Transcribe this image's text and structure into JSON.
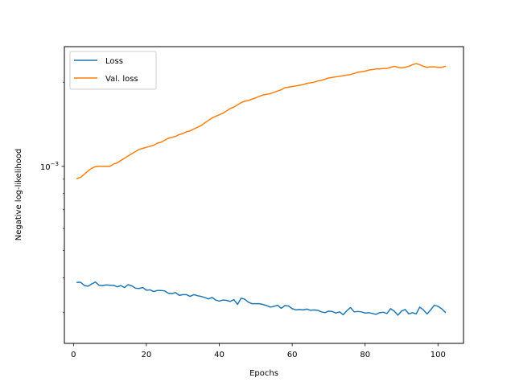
{
  "chart_data": {
    "type": "line",
    "xlabel": "Epochs",
    "ylabel": "Negative log-likelihood",
    "xlim": [
      -2.5,
      107
    ],
    "ylim": [
      0.000233,
      0.00268
    ],
    "yscale": "log",
    "x_ticks": [
      {
        "value": 0,
        "label": "0"
      },
      {
        "value": 20,
        "label": "20"
      },
      {
        "value": 40,
        "label": "40"
      },
      {
        "value": 60,
        "label": "60"
      },
      {
        "value": 80,
        "label": "80"
      },
      {
        "value": 100,
        "label": "100"
      }
    ],
    "y_ticks": [
      {
        "value": 0.001,
        "base": "10",
        "exponent": "−3"
      }
    ],
    "legend_position": "top-left",
    "grid": false,
    "series": [
      {
        "name": "Loss",
        "color": "#1f77b4",
        "x": [
          1,
          2,
          3,
          4,
          5,
          6,
          7,
          8,
          9,
          10,
          11,
          12,
          13,
          14,
          15,
          16,
          17,
          18,
          19,
          20,
          21,
          22,
          23,
          24,
          25,
          26,
          27,
          28,
          29,
          30,
          31,
          32,
          33,
          34,
          35,
          36,
          37,
          38,
          39,
          40,
          41,
          42,
          43,
          44,
          45,
          46,
          47,
          48,
          49,
          50,
          51,
          52,
          53,
          54,
          55,
          56,
          57,
          58,
          59,
          60,
          61,
          62,
          63,
          64,
          65,
          66,
          67,
          68,
          69,
          70,
          71,
          72,
          73,
          74,
          75,
          76,
          77,
          78,
          79,
          80,
          81,
          82,
          83,
          84,
          85,
          86,
          87,
          88,
          89,
          90,
          91,
          92,
          93,
          94,
          95,
          96,
          97,
          98,
          99,
          100,
          101,
          102
        ],
        "values": [
          0.000385,
          0.000385,
          0.000375,
          0.000373,
          0.00038,
          0.000386,
          0.000376,
          0.000375,
          0.000377,
          0.000376,
          0.000376,
          0.000371,
          0.000375,
          0.000369,
          0.000378,
          0.000374,
          0.000367,
          0.000366,
          0.000369,
          0.000361,
          0.000362,
          0.000357,
          0.00036,
          0.00036,
          0.000359,
          0.000352,
          0.000351,
          0.000354,
          0.000346,
          0.000348,
          0.000348,
          0.000343,
          0.000348,
          0.000345,
          0.000343,
          0.00034,
          0.000336,
          0.00034,
          0.000333,
          0.00033,
          0.000333,
          0.000332,
          0.000329,
          0.000334,
          0.000321,
          0.000338,
          0.000335,
          0.000327,
          0.000323,
          0.000323,
          0.000323,
          0.000321,
          0.000318,
          0.000314,
          0.000316,
          0.000319,
          0.000311,
          0.000318,
          0.000317,
          0.00031,
          0.000307,
          0.000308,
          0.000307,
          0.000309,
          0.000306,
          0.000307,
          0.000306,
          0.000302,
          0.0003,
          0.000304,
          0.000303,
          0.000299,
          0.000302,
          0.000295,
          0.000305,
          0.000313,
          0.000302,
          0.000303,
          0.000302,
          0.000299,
          0.0003,
          0.000298,
          0.000296,
          0.0003,
          0.000301,
          0.000298,
          0.00031,
          0.000304,
          0.000294,
          0.000304,
          0.000308,
          0.000297,
          0.0003,
          0.000297,
          0.000314,
          0.000307,
          0.000297,
          0.000307,
          0.000319,
          0.000316,
          0.00031,
          0.000301
        ]
      },
      {
        "name": "Val. loss",
        "color": "#ff7f0e",
        "x": [
          1,
          2,
          3,
          4,
          5,
          6,
          7,
          8,
          9,
          10,
          11,
          12,
          13,
          14,
          15,
          16,
          17,
          18,
          19,
          20,
          21,
          22,
          23,
          24,
          25,
          26,
          27,
          28,
          29,
          30,
          31,
          32,
          33,
          34,
          35,
          36,
          37,
          38,
          39,
          40,
          41,
          42,
          43,
          44,
          45,
          46,
          47,
          48,
          49,
          50,
          51,
          52,
          53,
          54,
          55,
          56,
          57,
          58,
          59,
          60,
          61,
          62,
          63,
          64,
          65,
          66,
          67,
          68,
          69,
          70,
          71,
          72,
          73,
          74,
          75,
          76,
          77,
          78,
          79,
          80,
          81,
          82,
          83,
          84,
          85,
          86,
          87,
          88,
          89,
          90,
          91,
          92,
          93,
          94,
          95,
          96,
          97,
          98,
          99,
          100,
          101,
          102
        ],
        "values": [
          0.000905,
          0.000915,
          0.000938,
          0.000963,
          0.000985,
          0.000998,
          0.001,
          0.001,
          0.001,
          0.001,
          0.00102,
          0.00103,
          0.00105,
          0.00107,
          0.00109,
          0.00111,
          0.00113,
          0.00115,
          0.00116,
          0.00117,
          0.00118,
          0.00119,
          0.00121,
          0.00122,
          0.00124,
          0.00126,
          0.00127,
          0.00128,
          0.0013,
          0.00131,
          0.00133,
          0.00134,
          0.00136,
          0.00138,
          0.0014,
          0.00143,
          0.00146,
          0.00149,
          0.00151,
          0.00153,
          0.00155,
          0.00158,
          0.00161,
          0.00163,
          0.00166,
          0.00169,
          0.00171,
          0.00172,
          0.00174,
          0.00176,
          0.00178,
          0.0018,
          0.00181,
          0.00182,
          0.00184,
          0.00186,
          0.00188,
          0.00191,
          0.00192,
          0.00193,
          0.00194,
          0.00195,
          0.00196,
          0.00198,
          0.00199,
          0.002,
          0.00202,
          0.00203,
          0.00205,
          0.00207,
          0.00208,
          0.00209,
          0.0021,
          0.00211,
          0.00212,
          0.00213,
          0.00215,
          0.00217,
          0.00218,
          0.00219,
          0.00221,
          0.00222,
          0.00223,
          0.00223,
          0.00224,
          0.00224,
          0.00226,
          0.00228,
          0.00226,
          0.00225,
          0.00226,
          0.00228,
          0.00231,
          0.00233,
          0.00231,
          0.00228,
          0.00226,
          0.00227,
          0.00227,
          0.00226,
          0.00226,
          0.00228
        ]
      }
    ]
  }
}
